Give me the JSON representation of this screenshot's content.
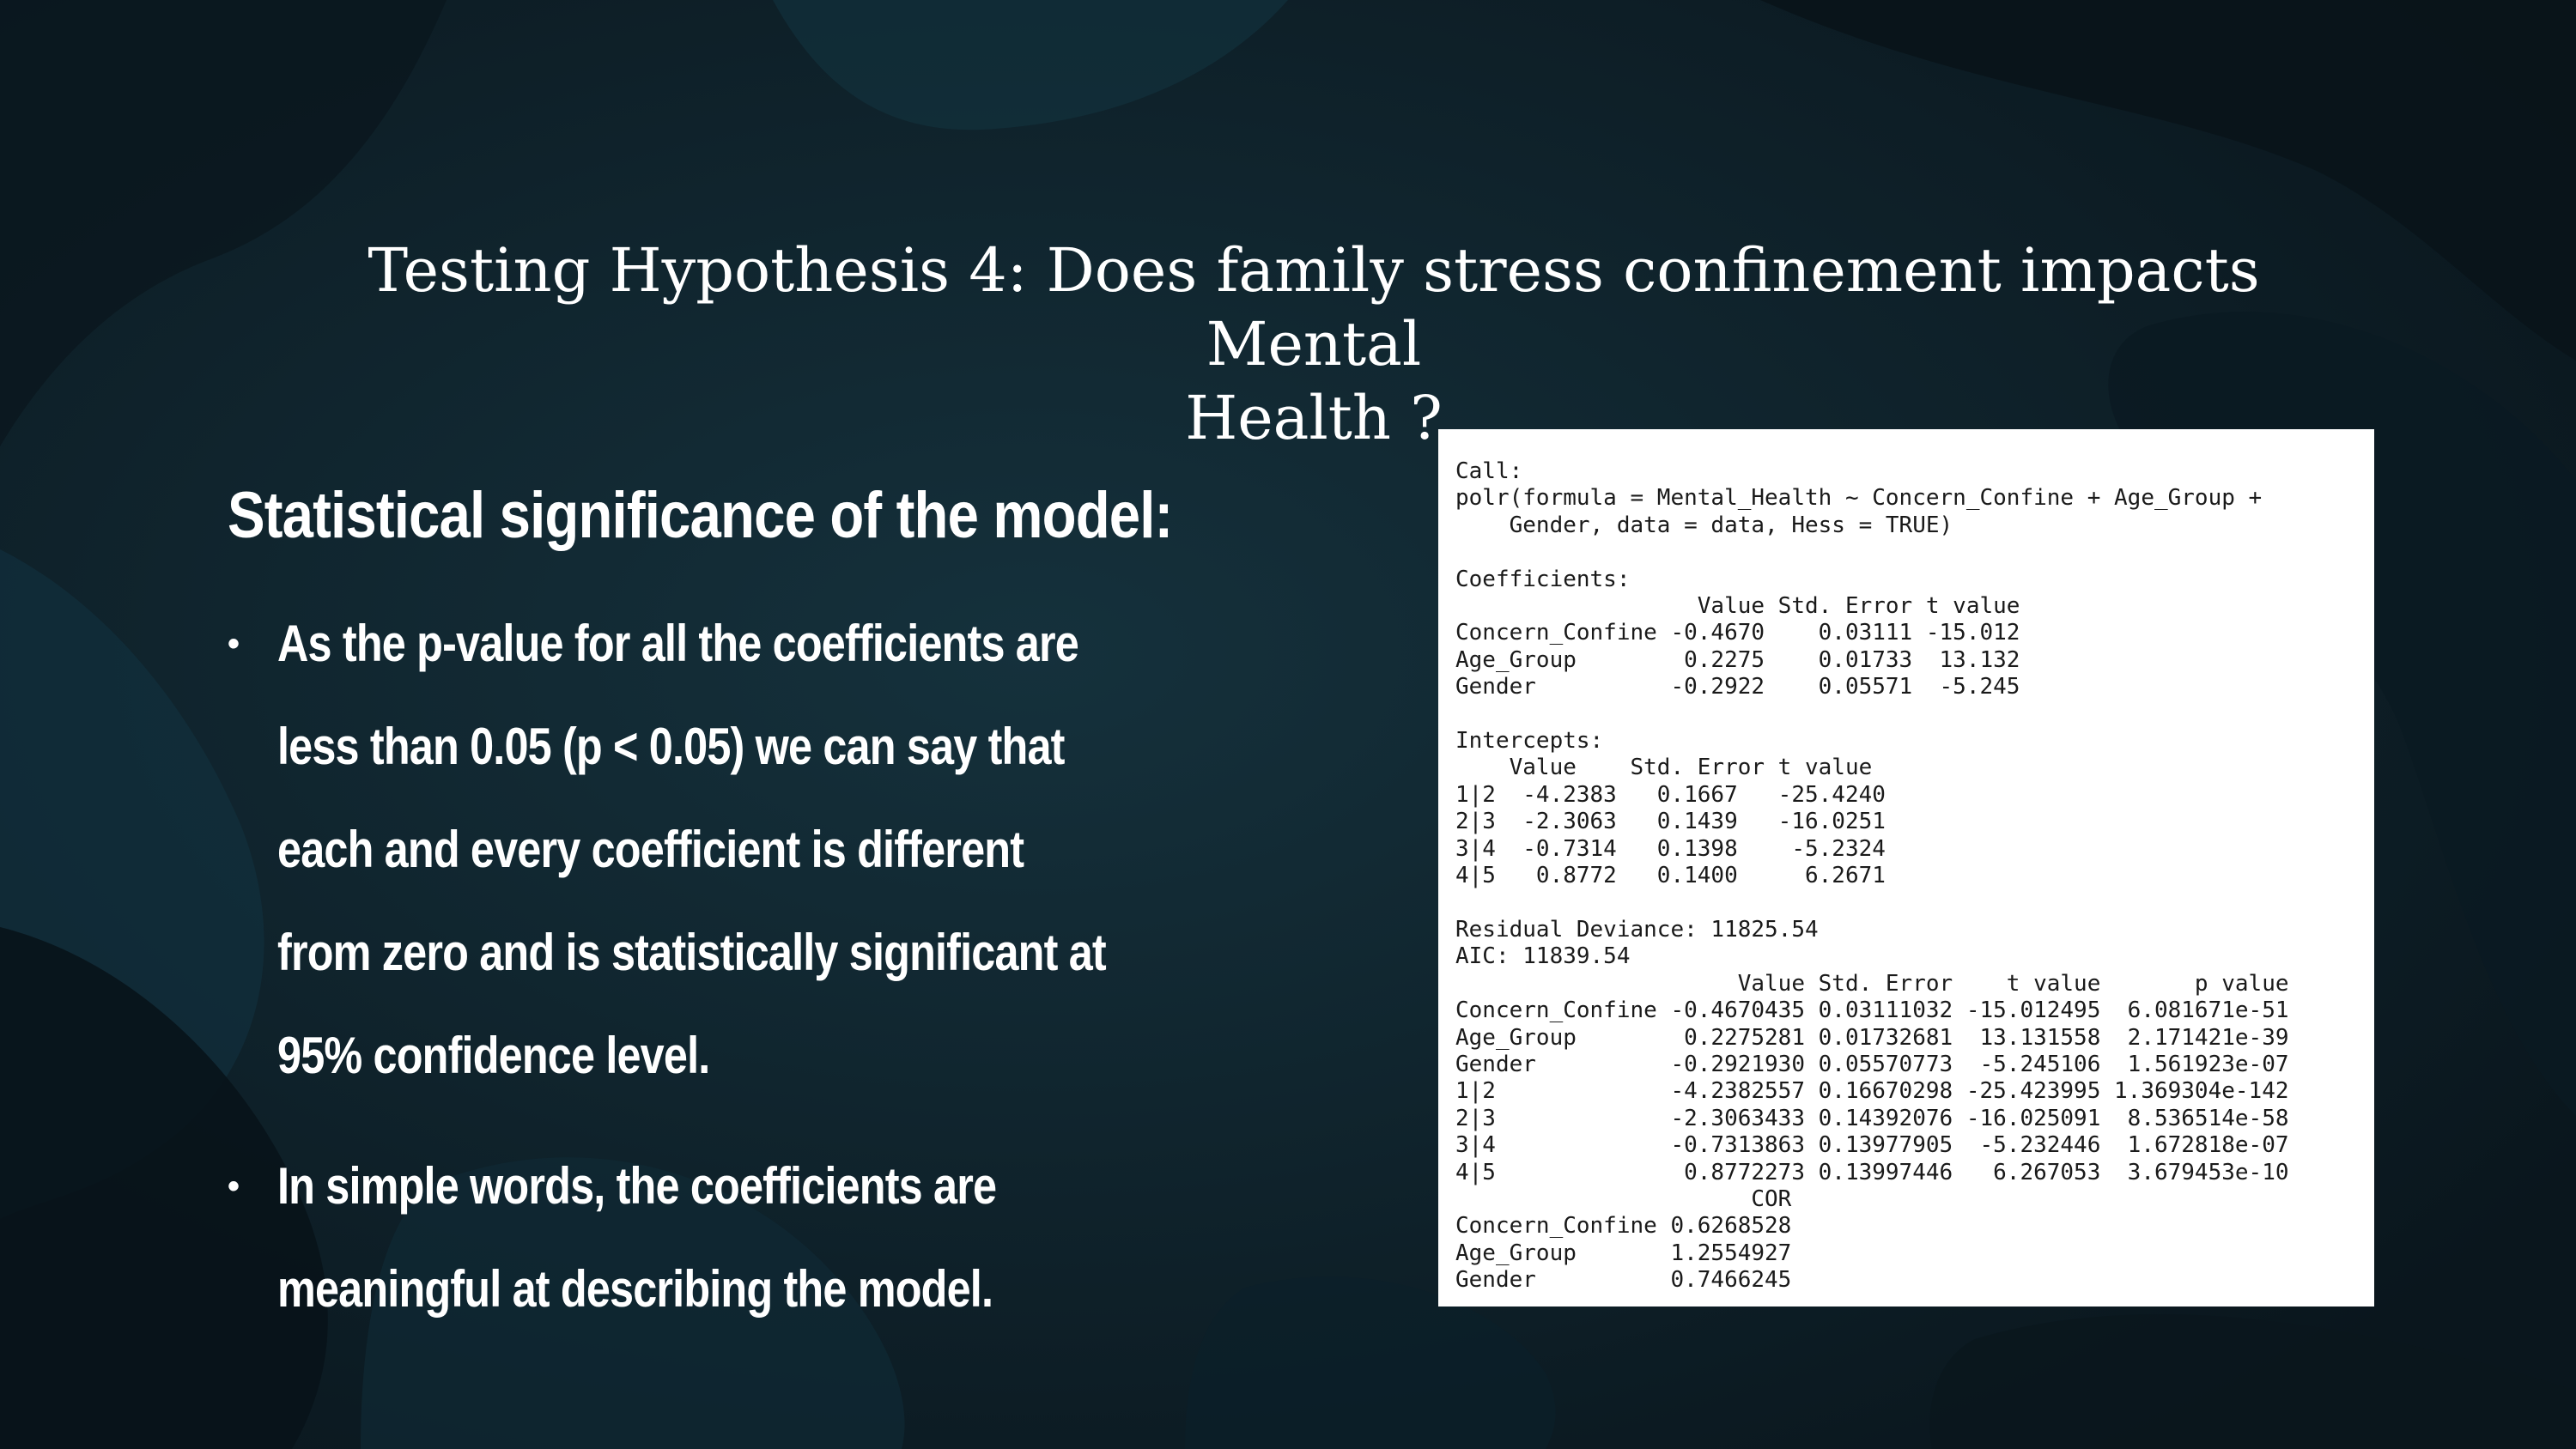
{
  "colors": {
    "background": "#0d1c24",
    "text": "#ffffff",
    "output_background": "#ffffff"
  },
  "slide": {
    "title_line1": "Testing Hypothesis 4: Does family stress confinement impacts Mental",
    "title_line2": "Health ?",
    "section_heading": "Statistical significance of the model:",
    "bullet_glyph": "•",
    "bullets": [
      "As the p-value for all the coefficients are less than 0.05 (p < 0.05) we can say that each and every coefficient is different from zero and is statistically significant at 95% confidence level.",
      "In simple words, the coefficients are meaningful at describing the model."
    ]
  },
  "r_output": {
    "text": "Call:\npolr(formula = Mental_Health ~ Concern_Confine + Age_Group +\n    Gender, data = data, Hess = TRUE)\n\nCoefficients:\n                  Value Std. Error t value\nConcern_Confine -0.4670    0.03111 -15.012\nAge_Group        0.2275    0.01733  13.132\nGender          -0.2922    0.05571  -5.245\n\nIntercepts:\n    Value    Std. Error t value\n1|2  -4.2383   0.1667   -25.4240\n2|3  -2.3063   0.1439   -16.0251\n3|4  -0.7314   0.1398    -5.2324\n4|5   0.8772   0.1400     6.2671\n\nResidual Deviance: 11825.54\nAIC: 11839.54\n                     Value Std. Error    t value       p value\nConcern_Confine -0.4670435 0.03111032 -15.012495  6.081671e-51\nAge_Group        0.2275281 0.01732681  13.131558  2.171421e-39\nGender          -0.2921930 0.05570773  -5.245106  1.561923e-07\n1|2             -4.2382557 0.16670298 -25.423995 1.369304e-142\n2|3             -2.3063433 0.14392076 -16.025091  8.536514e-58\n3|4             -0.7313863 0.13977905  -5.232446  1.672818e-07\n4|5              0.8772273 0.13997446   6.267053  3.679453e-10\n                      COR\nConcern_Confine 0.6268528\nAge_Group       1.2554927\nGender          0.7466245"
  }
}
